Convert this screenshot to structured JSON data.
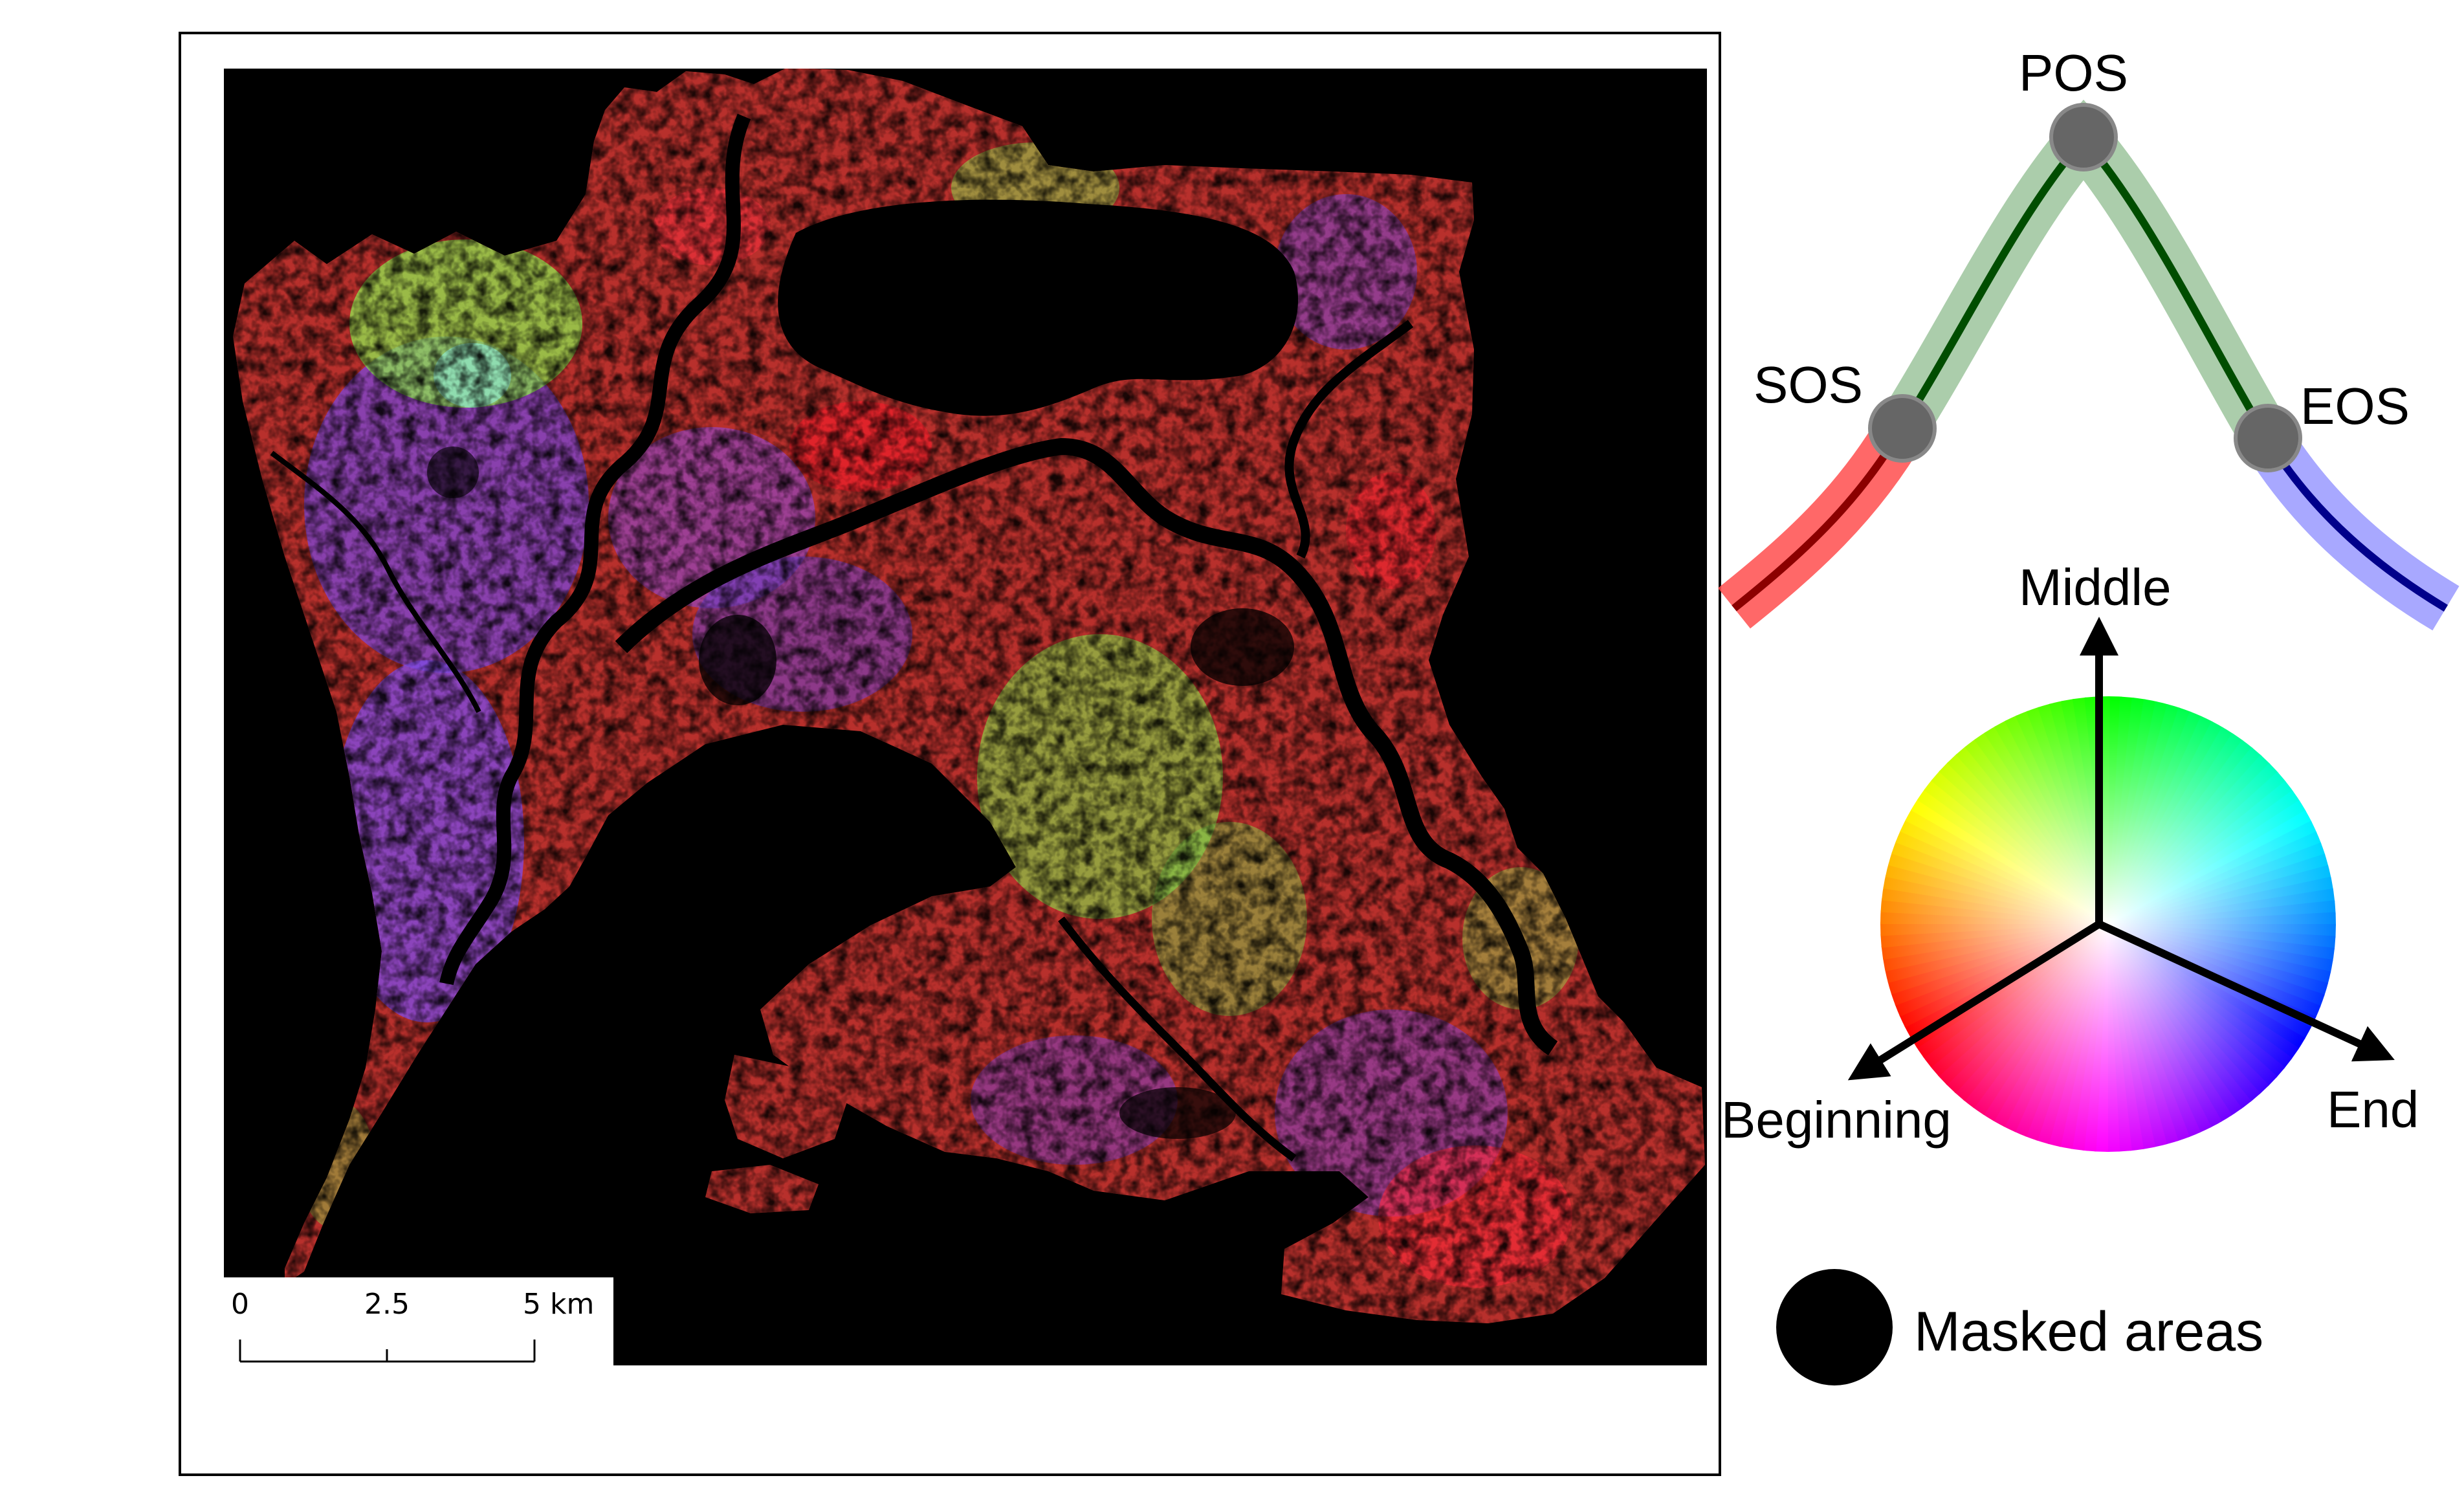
{
  "scale_bar": {
    "tick_0": "0",
    "tick_1": "2.5",
    "tick_2": "5 km"
  },
  "phenology_curve": {
    "labels": {
      "sos": "SOS",
      "pos": "POS",
      "eos": "EOS"
    },
    "colors": {
      "beginning": "#ff4d4d",
      "beginning_line": "#8b0000",
      "middle": "#8fbc8f",
      "middle_line": "#004d00",
      "end": "#9999ff",
      "end_line": "#00008b",
      "point": "#666666"
    }
  },
  "color_wheel": {
    "axis_middle": "Middle",
    "axis_beginning": "Beginning",
    "axis_end": "End"
  },
  "masked": {
    "label": "Masked areas",
    "color": "#000000"
  },
  "map": {
    "background": "#000000",
    "dominant_colors": [
      "#c0302a",
      "#7a3fd0",
      "#8fe84a",
      "#ff2030",
      "#3a1a1a"
    ]
  }
}
